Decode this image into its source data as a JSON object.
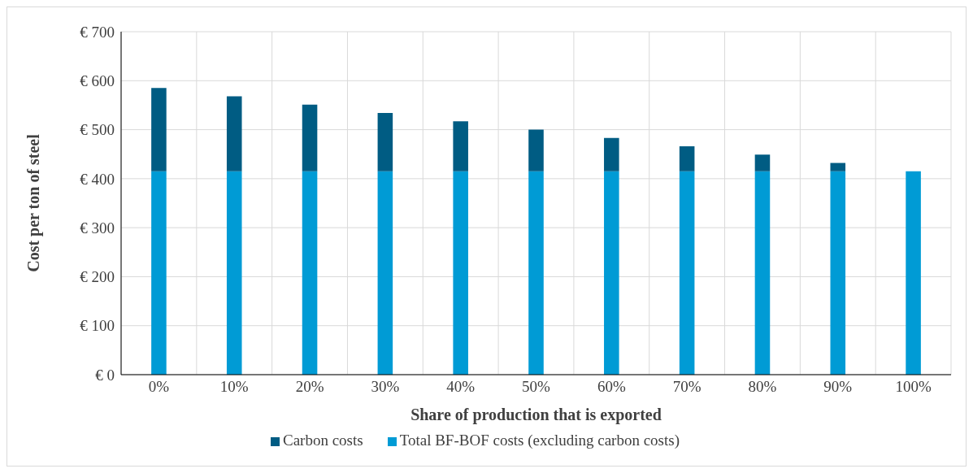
{
  "chart_data": {
    "type": "bar",
    "stacked": true,
    "xlabel": "Share of production that is exported",
    "ylabel": "Cost per ton of steel",
    "categories": [
      "0%",
      "10%",
      "20%",
      "30%",
      "40%",
      "50%",
      "60%",
      "70%",
      "80%",
      "90%",
      "100%"
    ],
    "series": [
      {
        "name": "Total BF-BOF costs (excluding carbon costs)",
        "color": "#009bd5",
        "values": [
          415,
          415,
          415,
          415,
          415,
          415,
          415,
          415,
          415,
          415,
          415
        ]
      },
      {
        "name": "Carbon costs",
        "color": "#005c83",
        "values": [
          170,
          153,
          136,
          119,
          102,
          85,
          68,
          51,
          34,
          17,
          0
        ]
      }
    ],
    "ylim": [
      0,
      700
    ],
    "yticks": [
      {
        "value": 0,
        "label": "€ 0"
      },
      {
        "value": 100,
        "label": "€ 100"
      },
      {
        "value": 200,
        "label": "€ 200"
      },
      {
        "value": 300,
        "label": "€ 300"
      },
      {
        "value": 400,
        "label": "€ 400"
      },
      {
        "value": 500,
        "label": "€ 500"
      },
      {
        "value": 600,
        "label": "€ 600"
      },
      {
        "value": 700,
        "label": "€ 700"
      }
    ],
    "grid": true,
    "legend": "bottom"
  }
}
